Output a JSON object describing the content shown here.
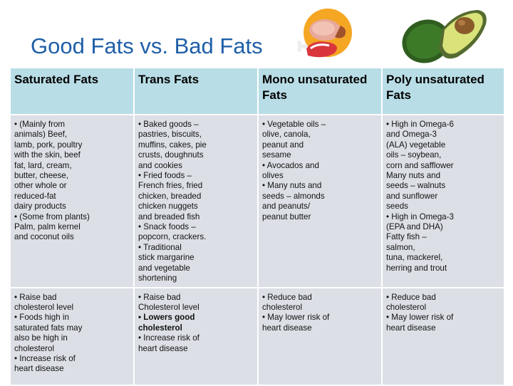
{
  "title": "Good Fats vs. Bad Fats",
  "icons": {
    "meat": "meat-icon",
    "avocado": "avocado-icon"
  },
  "colors": {
    "title": "#1f5fa8",
    "header_bg": "#b8dde6",
    "cell_bg": "#dcdfe5"
  },
  "table": {
    "headers": [
      [
        "Saturated Fats"
      ],
      [
        "Trans Fats"
      ],
      [
        "Mono unsaturated",
        "Fats"
      ],
      [
        "Poly unsaturated",
        "Fats"
      ]
    ],
    "foods": [
      [
        "• (Mainly from",
        "animals) Beef,",
        "lamb, pork, poultry",
        "with the skin, beef",
        "fat, lard, cream,",
        "butter, cheese,",
        "other whole or",
        "reduced-fat",
        "dairy products",
        "• (Some from plants)",
        "Palm, palm kernel",
        "and coconut oils"
      ],
      [
        "• Baked goods –",
        "pastries, biscuits,",
        "muffins, cakes, pie",
        "crusts, doughnuts",
        "and cookies",
        "• Fried foods –",
        "French fries, fried",
        "chicken, breaded",
        "chicken nuggets",
        "and breaded fish",
        "• Snack foods –",
        "popcorn, crackers.",
        "• Traditional",
        "stick margarine",
        "and vegetable",
        "shortening"
      ],
      [
        "• Vegetable oils –",
        "olive, canola,",
        "peanut and",
        "sesame",
        "• Avocados and",
        "olives",
        "• Many nuts and",
        "seeds – almonds",
        "and peanuts/",
        "peanut butter"
      ],
      [
        "• High in Omega-6",
        "and Omega-3",
        "(ALA) vegetable",
        "oils – soybean,",
        "corn and safflower",
        "Many nuts and",
        "seeds – walnuts",
        "and sunflower",
        "seeds",
        "• High in Omega-3",
        "(EPA and DHA)",
        "Fatty fish –",
        "salmon,",
        "tuna, mackerel,",
        "herring and trout"
      ]
    ],
    "effects": [
      [
        "• Raise bad",
        "cholesterol level",
        "• Foods high in",
        "saturated fats may",
        "also be high in",
        "cholesterol",
        "• Increase risk of",
        "heart disease"
      ],
      [
        "• Raise bad",
        "Cholesterol level",
        "• Lowers good",
        "cholesterol",
        "• Increase risk of",
        "heart disease"
      ],
      [
        "• Reduce bad",
        "cholesterol",
        "• May lower risk of",
        "heart disease"
      ],
      [
        "• Reduce bad",
        "cholesterol",
        "• May lower risk of",
        "heart disease"
      ]
    ]
  }
}
